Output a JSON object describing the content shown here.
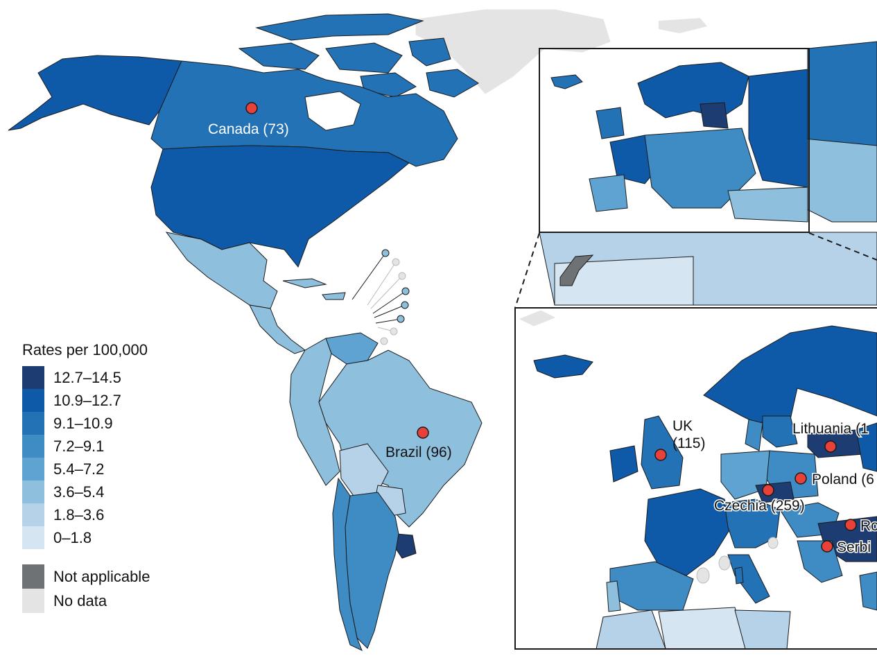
{
  "legend": {
    "title": "Rates per 100,000",
    "bins": [
      {
        "label": "12.7–14.5",
        "color": "#1c3c72"
      },
      {
        "label": "10.9–12.7",
        "color": "#0f5aa8"
      },
      {
        "label": "9.1–10.9",
        "color": "#2472b6"
      },
      {
        "label": "7.2–9.1",
        "color": "#3f8bc4"
      },
      {
        "label": "5.4–7.2",
        "color": "#5fa3d2"
      },
      {
        "label": "3.6–5.4",
        "color": "#8ebfdc"
      },
      {
        "label": "1.8–3.6",
        "color": "#b6d2e8"
      },
      {
        "label": "0–1.8",
        "color": "#d6e5f2"
      }
    ],
    "not_applicable": {
      "label": "Not applicable",
      "color": "#6f7275"
    },
    "no_data": {
      "label": "No data",
      "color": "#e4e4e4"
    }
  },
  "markers": {
    "canada": "Canada (73)",
    "brazil": "Brazil (96)",
    "uk_name": "UK",
    "uk_count": "(115)",
    "lithuania": "Lithuania (1",
    "poland": "Poland (6",
    "czechia": "Czechia (259)",
    "romania": "Ro",
    "serbia": "Serbi"
  },
  "colors": {
    "marker_fill": "#e8413a",
    "border": "#1a1a1a"
  }
}
